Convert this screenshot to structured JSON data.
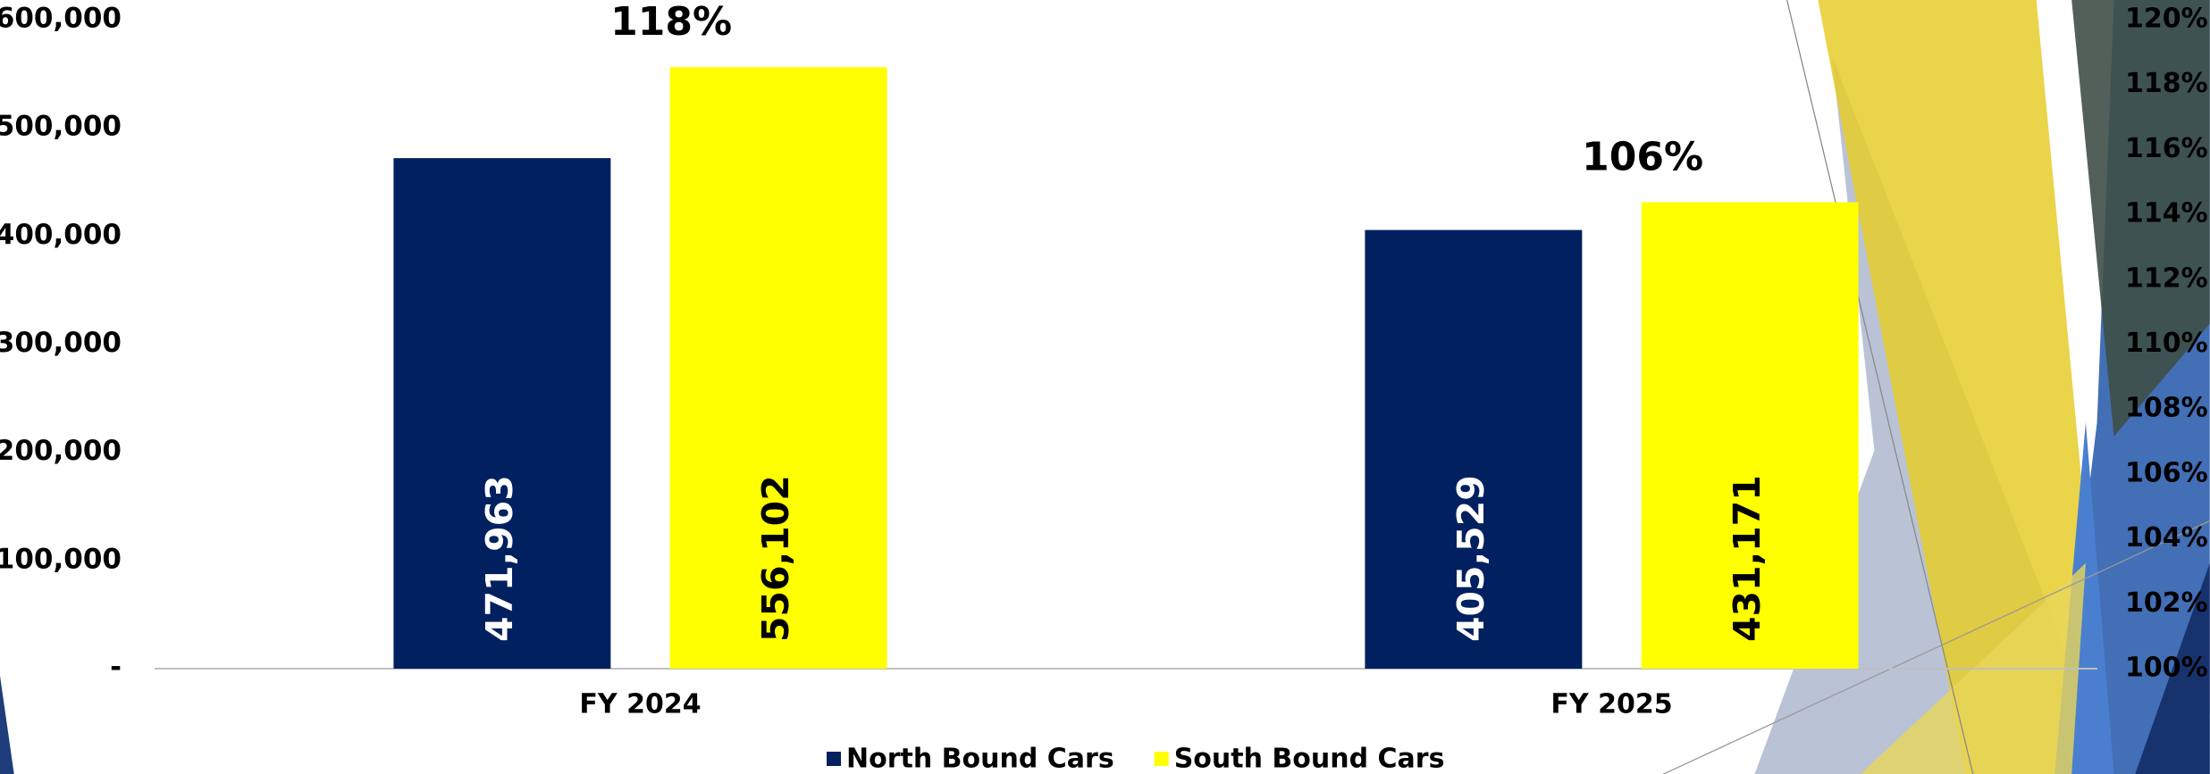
{
  "chart_data": {
    "type": "bar",
    "categories": [
      "FY 2024",
      "FY 2025"
    ],
    "series": [
      {
        "name": "North Bound Cars",
        "color": "#002060",
        "values": [
          471963,
          405529
        ],
        "value_labels": [
          "471,963",
          "405,529"
        ]
      },
      {
        "name": "South Bound Cars",
        "color": "#ffff00",
        "values": [
          556102,
          431171
        ],
        "value_labels": [
          "556,102",
          "431,171"
        ]
      }
    ],
    "annotations": [
      "118%",
      "106%"
    ],
    "ylim": [
      0,
      600000
    ],
    "yticks": [
      {
        "value": 0,
        "label": "-"
      },
      {
        "value": 100000,
        "label": "100,000"
      },
      {
        "value": 200000,
        "label": "200,000"
      },
      {
        "value": 300000,
        "label": "300,000"
      },
      {
        "value": 400000,
        "label": "400,000"
      },
      {
        "value": 500000,
        "label": "500,000"
      },
      {
        "value": 600000,
        "label": "600,000"
      }
    ],
    "y2lim": [
      100,
      120
    ],
    "y2ticks": [
      {
        "value": 100,
        "label": "100%"
      },
      {
        "value": 102,
        "label": "102%"
      },
      {
        "value": 104,
        "label": "104%"
      },
      {
        "value": 106,
        "label": "106%"
      },
      {
        "value": 108,
        "label": "108%"
      },
      {
        "value": 110,
        "label": "110%"
      },
      {
        "value": 112,
        "label": "112%"
      },
      {
        "value": 114,
        "label": "114%"
      },
      {
        "value": 116,
        "label": "116%"
      },
      {
        "value": 118,
        "label": "118%"
      },
      {
        "value": 120,
        "label": "120%"
      }
    ],
    "legend": "bottom"
  }
}
